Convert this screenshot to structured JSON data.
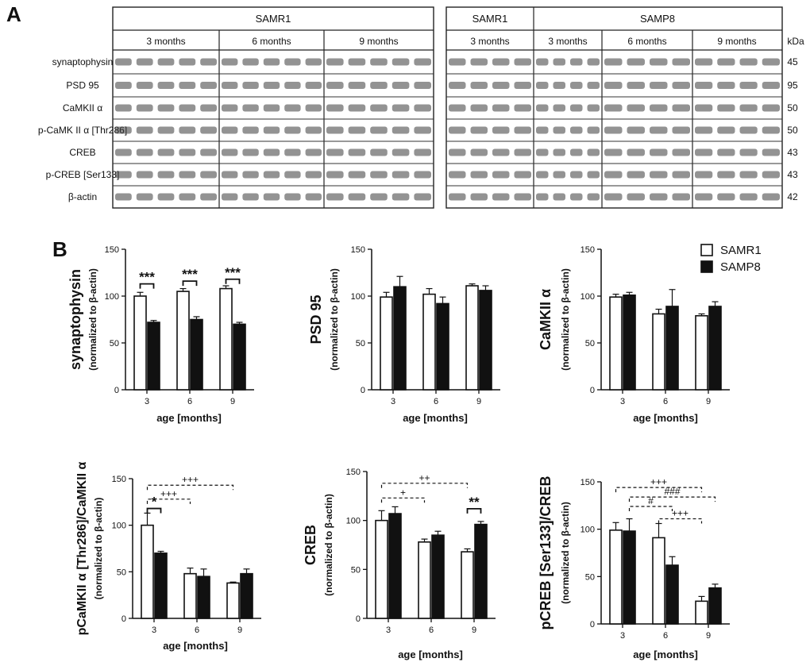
{
  "panel_a": {
    "letter": "A",
    "group_left": "SAMR1",
    "group_right_r1": "SAMR1",
    "group_right_p8": "SAMP8",
    "months": [
      "3 months",
      "6 months",
      "9 months"
    ],
    "kda_header": "kDa",
    "proteins": [
      "synaptophysin",
      "PSD 95",
      "CaMKII α",
      "p-CaMK II α [Thr286]",
      "CREB",
      "p-CREB [Ser133]",
      "β-actin"
    ],
    "kda": [
      "45",
      "95",
      "50",
      "50",
      "43",
      "43",
      "42"
    ]
  },
  "panel_b": {
    "letter": "B",
    "legend": {
      "r1": "SAMR1",
      "p8": "SAMP8"
    }
  },
  "chart_data": [
    {
      "type": "bar",
      "ylabel": "synaptophysin",
      "ylabel_sub": "(normalized to β-actin)",
      "xlabel": "age [months]",
      "categories": [
        "3",
        "6",
        "9"
      ],
      "ylim": [
        0,
        150
      ],
      "yticks": [
        "0",
        "50",
        "100",
        "150"
      ],
      "series": [
        {
          "name": "SAMR1",
          "values": [
            100,
            105,
            108
          ],
          "errors": [
            4,
            3,
            3
          ]
        },
        {
          "name": "SAMP8",
          "values": [
            72,
            75,
            70
          ],
          "errors": [
            2,
            3,
            2
          ]
        }
      ],
      "annotations": [
        {
          "text": "***",
          "style": "solid",
          "from": [
            0,
            0
          ],
          "to": [
            0,
            1
          ],
          "value": 113
        },
        {
          "text": "***",
          "style": "solid",
          "from": [
            1,
            0
          ],
          "to": [
            1,
            1
          ],
          "value": 116
        },
        {
          "text": "***",
          "style": "solid",
          "from": [
            2,
            0
          ],
          "to": [
            2,
            1
          ],
          "value": 118
        }
      ]
    },
    {
      "type": "bar",
      "ylabel": "PSD 95",
      "ylabel_sub": "(normalized to β-actin)",
      "xlabel": "age [months]",
      "categories": [
        "3",
        "6",
        "9"
      ],
      "ylim": [
        0,
        150
      ],
      "yticks": [
        "0",
        "50",
        "100",
        "150"
      ],
      "series": [
        {
          "name": "SAMR1",
          "values": [
            99,
            102,
            111
          ],
          "errors": [
            5,
            6,
            2
          ]
        },
        {
          "name": "SAMP8",
          "values": [
            110,
            92,
            106
          ],
          "errors": [
            11,
            7,
            5
          ]
        }
      ],
      "annotations": []
    },
    {
      "type": "bar",
      "ylabel": "CaMKII α",
      "ylabel_sub": "(normalized to β-actin)",
      "xlabel": "age [months]",
      "categories": [
        "3",
        "6",
        "9"
      ],
      "ylim": [
        0,
        150
      ],
      "yticks": [
        "0",
        "50",
        "100",
        "150"
      ],
      "series": [
        {
          "name": "SAMR1",
          "values": [
            99,
            81,
            79
          ],
          "errors": [
            3,
            5,
            2
          ]
        },
        {
          "name": "SAMP8",
          "values": [
            101,
            89,
            89
          ],
          "errors": [
            3,
            18,
            5
          ]
        }
      ],
      "annotations": []
    },
    {
      "type": "bar",
      "ylabel": "pCaMKII α [Thr286]/CaMKII α",
      "ylabel_sub": "(normalized to β-actin)",
      "xlabel": "age [months]",
      "categories": [
        "3",
        "6",
        "9"
      ],
      "ylim": [
        0,
        150
      ],
      "yticks": [
        "0",
        "50",
        "100",
        "150"
      ],
      "series": [
        {
          "name": "SAMR1",
          "values": [
            100,
            48,
            38
          ],
          "errors": [
            13,
            6,
            1
          ]
        },
        {
          "name": "SAMP8",
          "values": [
            70,
            45,
            48
          ],
          "errors": [
            2,
            8,
            5
          ]
        }
      ],
      "annotations": [
        {
          "text": "*",
          "style": "solid",
          "from": [
            0,
            0
          ],
          "to": [
            0,
            1
          ],
          "value": 118
        },
        {
          "text": "+++",
          "style": "dashed",
          "from": [
            0,
            0
          ],
          "to": [
            1,
            0
          ],
          "value": 128
        },
        {
          "text": "+++",
          "style": "dashed",
          "from": [
            0,
            0
          ],
          "to": [
            2,
            0
          ],
          "value": 143
        }
      ]
    },
    {
      "type": "bar",
      "ylabel": "CREB",
      "ylabel_sub": "(normalized to β-actin)",
      "xlabel": "age [months]",
      "categories": [
        "3",
        "6",
        "9"
      ],
      "ylim": [
        0,
        150
      ],
      "yticks": [
        "0",
        "50",
        "100",
        "150"
      ],
      "series": [
        {
          "name": "SAMR1",
          "values": [
            100,
            78,
            68
          ],
          "errors": [
            10,
            3,
            3
          ]
        },
        {
          "name": "SAMP8",
          "values": [
            107,
            85,
            96
          ],
          "errors": [
            7,
            4,
            3
          ]
        }
      ],
      "annotations": [
        {
          "text": "**",
          "style": "solid",
          "from": [
            2,
            0
          ],
          "to": [
            2,
            1
          ],
          "value": 112
        },
        {
          "text": "+",
          "style": "dashed",
          "from": [
            0,
            0
          ],
          "to": [
            1,
            0
          ],
          "value": 123
        },
        {
          "text": "++",
          "style": "dashed",
          "from": [
            0,
            0
          ],
          "to": [
            2,
            0
          ],
          "value": 138
        }
      ]
    },
    {
      "type": "bar",
      "ylabel": "pCREB [Ser133]/CREB",
      "ylabel_sub": "(normalized to β-actin)",
      "xlabel": "age [months]",
      "categories": [
        "3",
        "6",
        "9"
      ],
      "ylim": [
        0,
        150
      ],
      "yticks": [
        "0",
        "50",
        "100",
        "150"
      ],
      "series": [
        {
          "name": "SAMR1",
          "values": [
            99,
            91,
            24
          ],
          "errors": [
            8,
            15,
            5
          ]
        },
        {
          "name": "SAMP8",
          "values": [
            98,
            62,
            38
          ],
          "errors": [
            13,
            9,
            4
          ]
        }
      ],
      "annotations": [
        {
          "text": "+++",
          "style": "dashed",
          "from": [
            0,
            0
          ],
          "to": [
            2,
            0
          ],
          "value": 144
        },
        {
          "text": "###",
          "style": "dashed",
          "from": [
            0,
            1
          ],
          "to": [
            2,
            1
          ],
          "value": 134
        },
        {
          "text": "#",
          "style": "dashed",
          "from": [
            0,
            1
          ],
          "to": [
            1,
            1
          ],
          "value": 124
        },
        {
          "text": "+++",
          "style": "dashed",
          "from": [
            1,
            0
          ],
          "to": [
            2,
            0
          ],
          "value": 111
        }
      ]
    }
  ]
}
